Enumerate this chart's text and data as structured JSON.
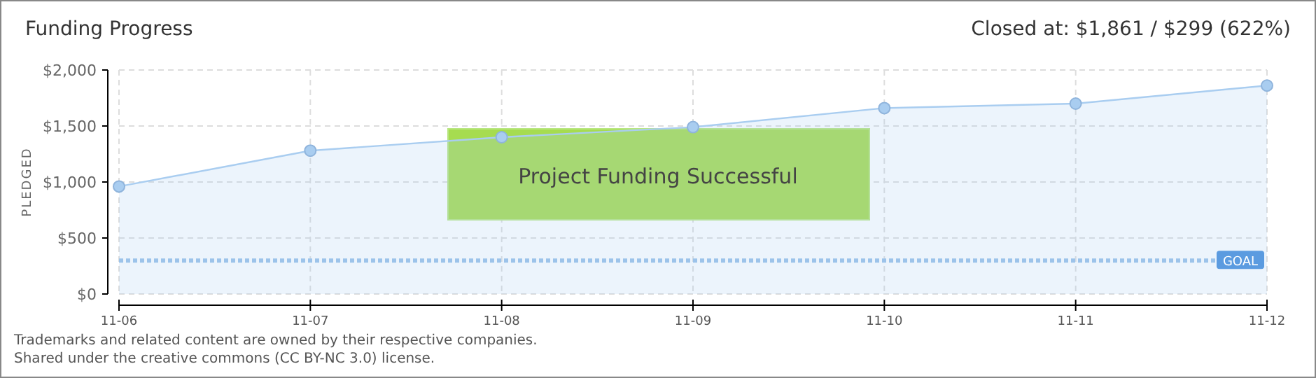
{
  "chart_data": {
    "type": "area",
    "title": "Funding Progress",
    "ylabel": "PLEDGED",
    "categories": [
      "11-06",
      "11-07",
      "11-08",
      "11-09",
      "11-10",
      "11-11",
      "11-12"
    ],
    "series": [
      {
        "color": "#a9cdf0",
        "values": [
          960,
          1280,
          1400,
          1490,
          1660,
          1700,
          1861
        ]
      }
    ],
    "ylim": [
      0,
      2000
    ],
    "yticks": [
      {
        "value": 0,
        "label": "$0"
      },
      {
        "value": 500,
        "label": "$500"
      },
      {
        "value": 1000,
        "label": "$1,000"
      },
      {
        "value": 1500,
        "label": "$1,500"
      },
      {
        "value": 2000,
        "label": "$2,000"
      }
    ],
    "grid": true,
    "marker": "circle",
    "line_style": "solid",
    "ref_lines": [
      {
        "axis": "y",
        "value": 299,
        "label": "GOAL",
        "color": "#9cc3ea",
        "line_style": "dotted"
      }
    ],
    "annotations": [
      "Closed at: $1,861 / $299 (622%)",
      "Project Funding Successful",
      "Trademarks and related content are owned by their respective companies.",
      "Shared under the creative commons (CC BY-NC 3.0) license."
    ]
  }
}
